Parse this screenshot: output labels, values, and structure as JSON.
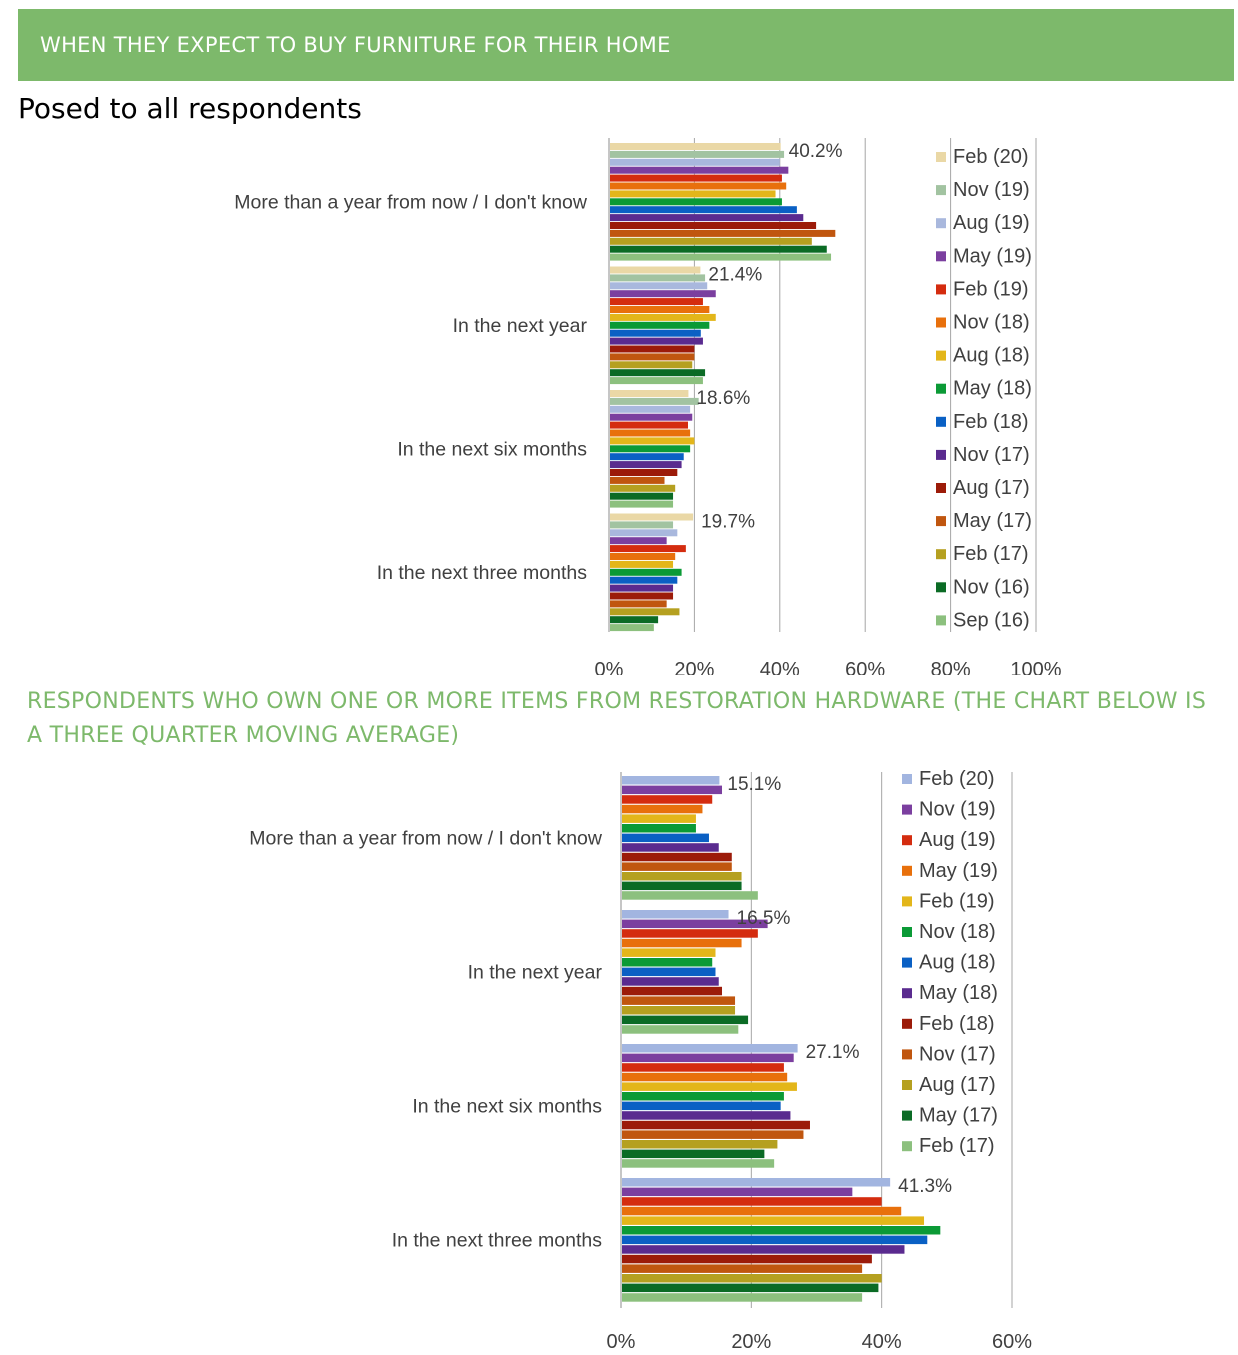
{
  "header": {
    "title": "WHEN THEY EXPECT TO BUY FURNITURE FOR THEIR HOME"
  },
  "intro": {
    "text": "Posed to all respondents"
  },
  "section2": {
    "title": "RESPONDENTS WHO OWN ONE OR MORE ITEMS FROM RESTORATION HARDWARE (THE CHART BELOW IS A THREE QUARTER MOVING AVERAGE)"
  },
  "chart_data": [
    {
      "type": "bar",
      "orientation": "horizontal",
      "categories": [
        "More than a year from now / I don't know",
        "In the next year",
        "In the next six months",
        "In the next three months"
      ],
      "xlim": [
        0,
        100
      ],
      "xticks": [
        "0%",
        "20%",
        "40%",
        "60%",
        "80%",
        "100%"
      ],
      "grid": true,
      "legend_position": "right",
      "data_labels": [
        "40.2%",
        "21.4%",
        "18.6%",
        "19.7%"
      ],
      "series": [
        {
          "name": "Feb (20)",
          "color": "#ead8a6",
          "values": [
            40.2,
            21.4,
            18.6,
            19.7
          ]
        },
        {
          "name": "Nov (19)",
          "color": "#a2c3a1",
          "values": [
            41,
            22.5,
            21,
            15
          ]
        },
        {
          "name": "Aug (19)",
          "color": "#a9b8dd",
          "values": [
            40,
            23,
            19,
            16
          ]
        },
        {
          "name": "May (19)",
          "color": "#7b3f9f",
          "values": [
            42,
            25,
            19.5,
            13.5
          ]
        },
        {
          "name": "Feb (19)",
          "color": "#d42c0f",
          "values": [
            40.5,
            22,
            18.5,
            18
          ]
        },
        {
          "name": "Nov (18)",
          "color": "#e8700c",
          "values": [
            41.5,
            23.5,
            19,
            15.5
          ]
        },
        {
          "name": "Aug (18)",
          "color": "#e3b61a",
          "values": [
            39,
            25,
            20,
            15
          ]
        },
        {
          "name": "May (18)",
          "color": "#0b9a36",
          "values": [
            40.5,
            23.5,
            19,
            17
          ]
        },
        {
          "name": "Feb (18)",
          "color": "#0a60c4",
          "values": [
            44,
            21.5,
            17.5,
            16
          ]
        },
        {
          "name": "Nov (17)",
          "color": "#5a2b8f",
          "values": [
            45.5,
            22,
            17,
            15
          ]
        },
        {
          "name": "Aug (17)",
          "color": "#9c1b09",
          "values": [
            48.5,
            20,
            16,
            15
          ]
        },
        {
          "name": "May (17)",
          "color": "#c0560f",
          "values": [
            53,
            20,
            13,
            13.5
          ]
        },
        {
          "name": "Feb (17)",
          "color": "#b5a020",
          "values": [
            47.5,
            19.5,
            15.5,
            16.5
          ]
        },
        {
          "name": "Nov (16)",
          "color": "#0b6b25",
          "values": [
            51,
            22.5,
            15,
            11.5
          ]
        },
        {
          "name": "Sep (16)",
          "color": "#8cc07e",
          "values": [
            52,
            22,
            15,
            10.5
          ]
        }
      ]
    },
    {
      "type": "bar",
      "orientation": "horizontal",
      "categories": [
        "More than a year from now / I don't know",
        "In the next year",
        "In the next six months",
        "In the next three months"
      ],
      "xlim": [
        0,
        60
      ],
      "xticks": [
        "0%",
        "20%",
        "40%",
        "60%"
      ],
      "grid": true,
      "legend_position": "right",
      "data_labels": [
        "15.1%",
        "16.5%",
        "27.1%",
        "41.3%"
      ],
      "series": [
        {
          "name": "Feb (20)",
          "color": "#a2b5e0",
          "values": [
            15.1,
            16.5,
            27.1,
            41.3
          ]
        },
        {
          "name": "Nov (19)",
          "color": "#7b3f9f",
          "values": [
            15.5,
            22.5,
            26.5,
            35.5
          ]
        },
        {
          "name": "Aug (19)",
          "color": "#d42c0f",
          "values": [
            14,
            21,
            25,
            40
          ]
        },
        {
          "name": "May (19)",
          "color": "#e8700c",
          "values": [
            12.5,
            18.5,
            25.5,
            43
          ]
        },
        {
          "name": "Feb (19)",
          "color": "#e3b61a",
          "values": [
            11.5,
            14.5,
            27,
            46.5
          ]
        },
        {
          "name": "Nov (18)",
          "color": "#0b9a36",
          "values": [
            11.5,
            14,
            25,
            49
          ]
        },
        {
          "name": "Aug (18)",
          "color": "#0a60c4",
          "values": [
            13.5,
            14.5,
            24.5,
            47
          ]
        },
        {
          "name": "May (18)",
          "color": "#5a2b8f",
          "values": [
            15,
            15,
            26,
            43.5
          ]
        },
        {
          "name": "Feb (18)",
          "color": "#9c1b09",
          "values": [
            17,
            15.5,
            29,
            38.5
          ]
        },
        {
          "name": "Nov (17)",
          "color": "#c0560f",
          "values": [
            17,
            17.5,
            28,
            37
          ]
        },
        {
          "name": "Aug (17)",
          "color": "#b5a020",
          "values": [
            18.5,
            17.5,
            24,
            40
          ]
        },
        {
          "name": "May (17)",
          "color": "#0b6b25",
          "values": [
            18.5,
            19.5,
            22,
            39.5
          ]
        },
        {
          "name": "Feb (17)",
          "color": "#8cc07e",
          "values": [
            21,
            18,
            23.5,
            37
          ]
        }
      ]
    }
  ]
}
